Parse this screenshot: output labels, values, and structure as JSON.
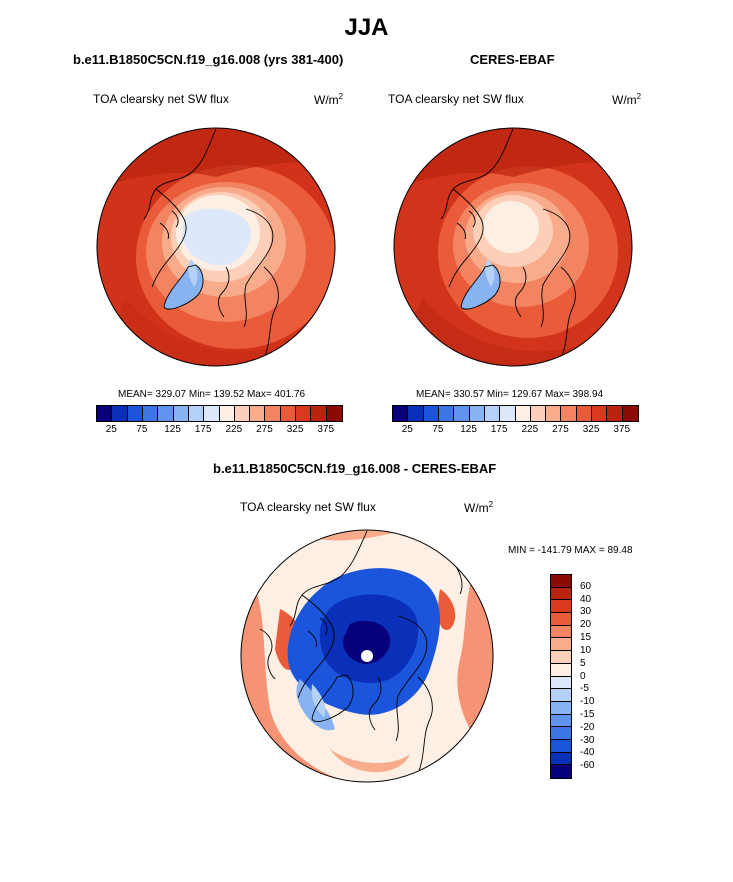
{
  "title": "JJA",
  "panels": {
    "left": {
      "title": "b.e11.B1850C5CN.f19_g16.008 (yrs 381-400)",
      "subtitle": "TOA clearsky net SW flux",
      "units": "W/m",
      "units_sup": "2",
      "stats": "MEAN= 329.07  Min= 139.52  Max= 401.76"
    },
    "right": {
      "title": "CERES-EBAF",
      "subtitle": "TOA clearsky net SW flux",
      "units": "W/m",
      "units_sup": "2",
      "stats": "MEAN= 330.57  Min= 129.67  Max= 398.94"
    },
    "diff": {
      "title": "b.e11.B1850C5CN.f19_g16.008 - CERES-EBAF",
      "subtitle": "TOA clearsky net SW flux",
      "units": "W/m",
      "units_sup": "2",
      "stats": "MIN = -141.79 MAX =  89.48"
    }
  },
  "colorbar_top": {
    "colors": [
      "#08007a",
      "#0a2fb8",
      "#1a55dc",
      "#3b75e6",
      "#5f94ee",
      "#87b3f3",
      "#b5d1f8",
      "#dde9fb",
      "#fdefe4",
      "#fcd0b8",
      "#f8ac8c",
      "#f28462",
      "#ea5b3a",
      "#d93a1e",
      "#b92310",
      "#8c0a04"
    ],
    "ticks": [
      "25",
      "75",
      "125",
      "175",
      "225",
      "275",
      "325",
      "375"
    ]
  },
  "colorbar_diff": {
    "colors": [
      "#8c0a04",
      "#b92310",
      "#d93a1e",
      "#ea5b3a",
      "#f28462",
      "#f8ac8c",
      "#fcd0b8",
      "#fdefe4",
      "#dde9fb",
      "#b5d1f8",
      "#87b3f3",
      "#5f94ee",
      "#3b75e6",
      "#1a55dc",
      "#0a2fb8",
      "#08007a"
    ],
    "ticks": [
      "60",
      "40",
      "30",
      "20",
      "15",
      "10",
      "5",
      "0",
      "-5",
      "-10",
      "-15",
      "-20",
      "-30",
      "-40",
      "-60"
    ]
  },
  "chart_data": [
    {
      "type": "heatmap",
      "title": "TOA clearsky net SW flux",
      "subtitle": "b.e11.B1850C5CN.f19_g16.008 (yrs 381-400)",
      "projection": "polar stereographic, north pole",
      "units": "W/m2",
      "levels": [
        25,
        50,
        75,
        100,
        125,
        150,
        175,
        200,
        225,
        250,
        275,
        300,
        325,
        350,
        375
      ],
      "mean": 329.07,
      "min": 139.52,
      "max": 401.76
    },
    {
      "type": "heatmap",
      "title": "TOA clearsky net SW flux",
      "subtitle": "CERES-EBAF",
      "projection": "polar stereographic, north pole",
      "units": "W/m2",
      "levels": [
        25,
        50,
        75,
        100,
        125,
        150,
        175,
        200,
        225,
        250,
        275,
        300,
        325,
        350,
        375
      ],
      "mean": 330.57,
      "min": 129.67,
      "max": 398.94
    },
    {
      "type": "heatmap",
      "title": "TOA clearsky net SW flux",
      "subtitle": "b.e11.B1850C5CN.f19_g16.008 - CERES-EBAF",
      "projection": "polar stereographic, north pole",
      "units": "W/m2",
      "levels": [
        -60,
        -40,
        -30,
        -20,
        -15,
        -10,
        -5,
        0,
        5,
        10,
        15,
        20,
        30,
        40,
        60
      ],
      "min": -141.79,
      "max": 89.48
    }
  ]
}
